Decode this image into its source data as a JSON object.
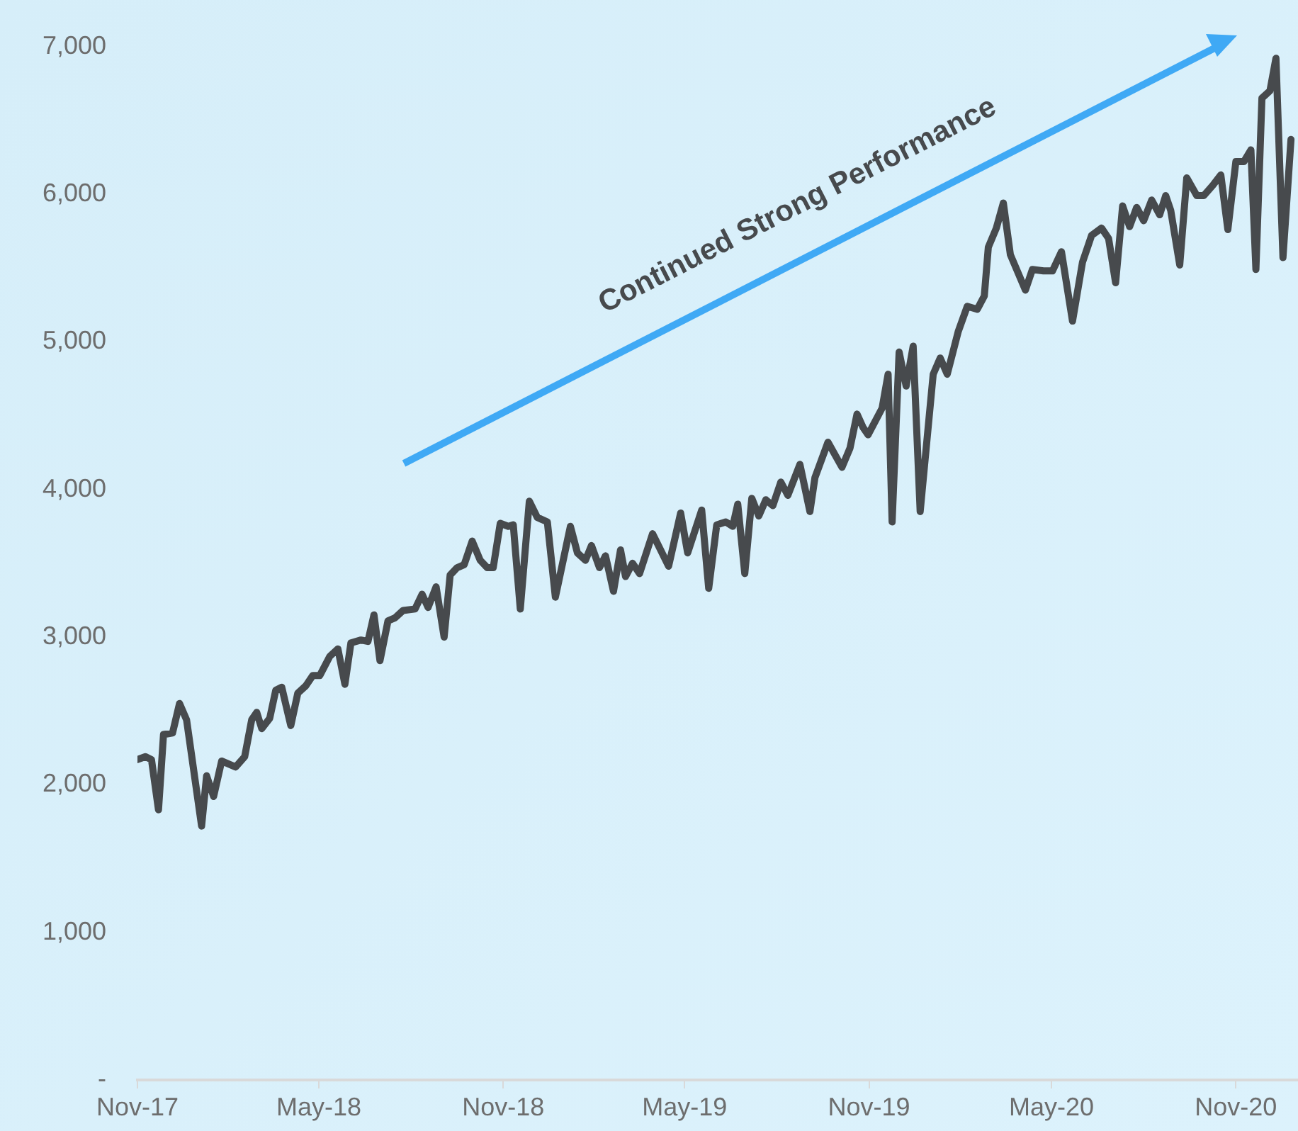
{
  "chart_data": {
    "type": "line",
    "annotations": [
      "Continued Strong Performance"
    ],
    "xlim": [
      "2017-11-01",
      "2021-01-02"
    ],
    "xticks": [
      {
        "value": "2017-11-01",
        "label": "Nov-17"
      },
      {
        "value": "2018-05-01",
        "label": "May-18"
      },
      {
        "value": "2018-11-01",
        "label": "Nov-18"
      },
      {
        "value": "2019-05-01",
        "label": "May-19"
      },
      {
        "value": "2019-11-01",
        "label": "Nov-19"
      },
      {
        "value": "2020-05-01",
        "label": "May-20"
      },
      {
        "value": "2020-11-01",
        "label": "Nov-20"
      }
    ],
    "ylim": [
      0,
      7000
    ],
    "yticks": [
      {
        "value": 0,
        "label": "-"
      },
      {
        "value": 1000,
        "label": "1,000"
      },
      {
        "value": 2000,
        "label": "2,000"
      },
      {
        "value": 3000,
        "label": "3,000"
      },
      {
        "value": 4000,
        "label": "4,000"
      },
      {
        "value": 5000,
        "label": "5,000"
      },
      {
        "value": 6000,
        "label": "6,000"
      },
      {
        "value": 7000,
        "label": "7,000"
      }
    ],
    "grid": false,
    "legend": false,
    "marker": "none",
    "line_style": "solid",
    "series": [
      {
        "color": "#474a4d",
        "x": [
          "2017-11-01",
          "2017-11-09",
          "2017-11-15",
          "2017-11-22",
          "2017-11-27",
          "2017-12-06",
          "2017-12-13",
          "2017-12-20",
          "2018-01-04",
          "2018-01-09",
          "2018-01-16",
          "2018-01-24",
          "2018-02-07",
          "2018-02-16",
          "2018-02-23",
          "2018-02-28",
          "2018-03-05",
          "2018-03-13",
          "2018-03-19",
          "2018-03-25",
          "2018-04-03",
          "2018-04-10",
          "2018-04-18",
          "2018-04-25",
          "2018-05-02",
          "2018-05-12",
          "2018-05-20",
          "2018-05-27",
          "2018-06-02",
          "2018-06-12",
          "2018-06-19",
          "2018-06-25",
          "2018-07-01",
          "2018-07-09",
          "2018-07-16",
          "2018-07-24",
          "2018-08-05",
          "2018-08-12",
          "2018-08-18",
          "2018-08-26",
          "2018-09-03",
          "2018-09-09",
          "2018-09-16",
          "2018-09-23",
          "2018-10-01",
          "2018-10-09",
          "2018-10-16",
          "2018-10-22",
          "2018-10-29",
          "2018-11-06",
          "2018-11-11",
          "2018-11-18",
          "2018-11-27",
          "2018-12-05",
          "2018-12-15",
          "2018-12-23",
          "2019-01-07",
          "2019-01-14",
          "2019-01-22",
          "2019-01-28",
          "2019-02-05",
          "2019-02-11",
          "2019-02-19",
          "2019-02-26",
          "2019-03-03",
          "2019-03-10",
          "2019-03-17",
          "2019-03-30",
          "2019-04-15",
          "2019-04-27",
          "2019-05-04",
          "2019-05-18",
          "2019-05-25",
          "2019-06-02",
          "2019-06-11",
          "2019-06-18",
          "2019-06-23",
          "2019-06-30",
          "2019-07-07",
          "2019-07-14",
          "2019-07-21",
          "2019-07-28",
          "2019-08-05",
          "2019-08-12",
          "2019-08-24",
          "2019-09-03",
          "2019-09-08",
          "2019-09-21",
          "2019-10-05",
          "2019-10-13",
          "2019-10-20",
          "2019-10-26",
          "2019-10-31",
          "2019-11-14",
          "2019-11-20",
          "2019-11-24",
          "2019-12-01",
          "2019-12-08",
          "2019-12-15",
          "2019-12-22",
          "2020-01-04",
          "2020-01-11",
          "2020-01-18",
          "2020-01-29",
          "2020-02-07",
          "2020-02-17",
          "2020-02-24",
          "2020-02-28",
          "2020-03-07",
          "2020-03-14",
          "2020-03-21",
          "2020-04-05",
          "2020-04-12",
          "2020-04-23",
          "2020-05-02",
          "2020-05-11",
          "2020-05-22",
          "2020-06-01",
          "2020-06-10",
          "2020-06-20",
          "2020-06-27",
          "2020-07-04",
          "2020-07-11",
          "2020-07-18",
          "2020-07-25",
          "2020-08-01",
          "2020-08-09",
          "2020-08-17",
          "2020-08-23",
          "2020-08-28",
          "2020-09-06",
          "2020-09-13",
          "2020-09-23",
          "2020-09-30",
          "2020-10-09",
          "2020-10-17",
          "2020-10-24",
          "2020-11-01",
          "2020-11-09",
          "2020-11-16",
          "2020-11-21",
          "2020-11-27",
          "2020-12-05",
          "2020-12-11",
          "2020-12-18",
          "2020-12-26"
        ],
        "values": [
          2170,
          2190,
          2170,
          1830,
          2340,
          2350,
          2550,
          2440,
          1720,
          2060,
          1920,
          2160,
          2120,
          2190,
          2440,
          2490,
          2380,
          2450,
          2640,
          2660,
          2400,
          2620,
          2670,
          2740,
          2740,
          2870,
          2920,
          2680,
          2960,
          2980,
          2970,
          3150,
          2840,
          3110,
          3130,
          3180,
          3190,
          3290,
          3200,
          3340,
          3000,
          3420,
          3470,
          3490,
          3650,
          3520,
          3470,
          3470,
          3770,
          3750,
          3760,
          3190,
          3920,
          3810,
          3780,
          3270,
          3750,
          3570,
          3520,
          3620,
          3470,
          3550,
          3310,
          3590,
          3410,
          3500,
          3430,
          3700,
          3480,
          3840,
          3570,
          3860,
          3330,
          3760,
          3780,
          3750,
          3900,
          3430,
          3940,
          3820,
          3930,
          3890,
          4050,
          3960,
          4170,
          3850,
          4080,
          4320,
          4150,
          4280,
          4510,
          4420,
          4370,
          4550,
          4780,
          3780,
          4930,
          4700,
          4970,
          3850,
          4780,
          4890,
          4780,
          5070,
          5240,
          5220,
          5310,
          5640,
          5770,
          5940,
          5590,
          5350,
          5490,
          5480,
          5480,
          5610,
          5140,
          5540,
          5720,
          5770,
          5700,
          5400,
          5920,
          5780,
          5910,
          5820,
          5960,
          5860,
          5990,
          5890,
          5520,
          6110,
          5990,
          5990,
          6060,
          6130,
          5760,
          6220,
          6220,
          6300,
          5490,
          6650,
          6700,
          6920,
          5570,
          6370
        ]
      }
    ]
  }
}
